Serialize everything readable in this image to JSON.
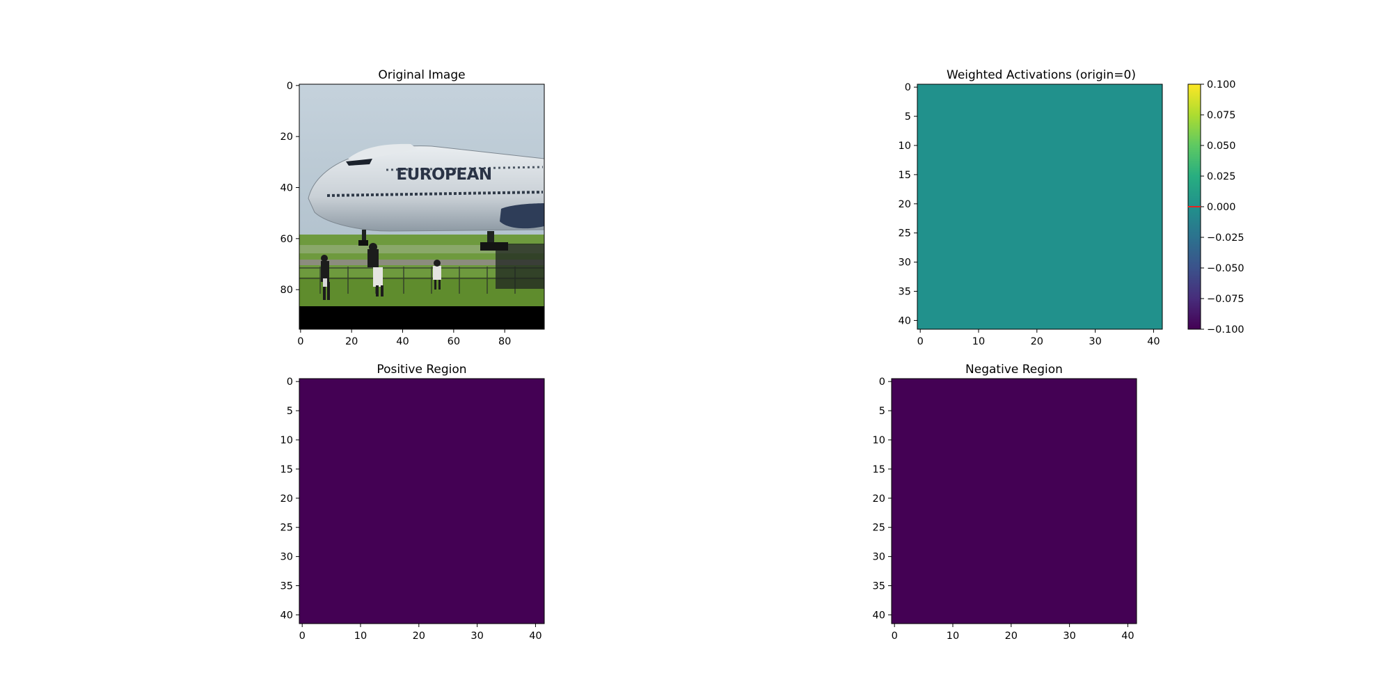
{
  "chart_data": [
    {
      "type": "image",
      "title": "Original Image",
      "image_description_name": "airplane-photo",
      "painted_text": "EUROPEAN",
      "xlim": [
        -0.5,
        95.5
      ],
      "ylim": [
        95.5,
        -0.5
      ],
      "xticks": [
        0,
        20,
        40,
        60,
        80
      ],
      "yticks": [
        0,
        20,
        40,
        60,
        80
      ]
    },
    {
      "type": "heatmap",
      "title": "Weighted Activations (origin=0)",
      "grid_size": [
        42,
        42
      ],
      "uniform_value": 0.0,
      "fill_color": "#21918c",
      "xticks": [
        0,
        10,
        20,
        30,
        40
      ],
      "yticks": [
        0,
        5,
        10,
        15,
        20,
        25,
        30,
        35,
        40
      ],
      "colorbar": {
        "min": -0.1,
        "max": 0.1,
        "ticks": [
          "0.100",
          "0.075",
          "0.050",
          "0.025",
          "0.000",
          "−0.025",
          "−0.050",
          "−0.075",
          "−0.100"
        ],
        "tick_values": [
          0.1,
          0.075,
          0.05,
          0.025,
          0.0,
          -0.025,
          -0.05,
          -0.075,
          -0.1
        ],
        "marker_value": 0.0,
        "marker_color": "#e8221e",
        "colormap": "viridis"
      }
    },
    {
      "type": "heatmap",
      "title": "Positive Region",
      "grid_size": [
        42,
        42
      ],
      "uniform_value": 0,
      "fill_color": "#440154",
      "xticks": [
        0,
        10,
        20,
        30,
        40
      ],
      "yticks": [
        0,
        5,
        10,
        15,
        20,
        25,
        30,
        35,
        40
      ]
    },
    {
      "type": "heatmap",
      "title": "Negative Region",
      "grid_size": [
        42,
        42
      ],
      "uniform_value": 0,
      "fill_color": "#440154",
      "xticks": [
        0,
        10,
        20,
        30,
        40
      ],
      "yticks": [
        0,
        5,
        10,
        15,
        20,
        25,
        30,
        35,
        40
      ]
    }
  ],
  "colors": {
    "axis": "#000000",
    "background": "#ffffff"
  }
}
